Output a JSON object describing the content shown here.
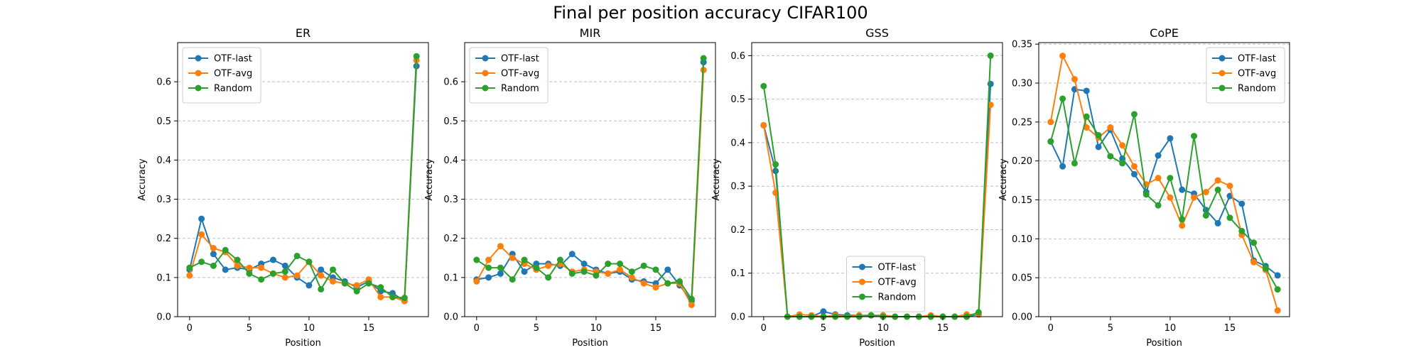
{
  "figure_title": "Final per position accuracy CIFAR100",
  "colors": {
    "OTF-last": "#1f77b4",
    "OTF-avg": "#ff7f0e",
    "Random": "#2ca02c",
    "grid": "#b0b0b0"
  },
  "chart_data": [
    {
      "type": "line",
      "title": "ER",
      "xlabel": "Position",
      "ylabel": "Accuracy",
      "x": [
        0,
        1,
        2,
        3,
        4,
        5,
        6,
        7,
        8,
        9,
        10,
        11,
        12,
        13,
        14,
        15,
        16,
        17,
        18,
        19
      ],
      "xlim": [
        -1.0,
        20.0
      ],
      "ylim": [
        0.0,
        0.7
      ],
      "xticks": [
        0,
        5,
        10,
        15
      ],
      "yticks": [
        0.0,
        0.1,
        0.2,
        0.3,
        0.4,
        0.5,
        0.6
      ],
      "grid": "y-dashed",
      "legend_position": "upper left",
      "series": [
        {
          "name": "OTF-last",
          "values": [
            0.12,
            0.25,
            0.16,
            0.12,
            0.125,
            0.12,
            0.135,
            0.145,
            0.13,
            0.1,
            0.08,
            0.12,
            0.1,
            0.09,
            0.075,
            0.09,
            0.065,
            0.06,
            0.04,
            0.64
          ]
        },
        {
          "name": "OTF-avg",
          "values": [
            0.105,
            0.21,
            0.175,
            0.165,
            0.13,
            0.125,
            0.125,
            0.11,
            0.1,
            0.105,
            0.14,
            0.105,
            0.09,
            0.085,
            0.08,
            0.095,
            0.05,
            0.05,
            0.04,
            0.655
          ]
        },
        {
          "name": "Random",
          "values": [
            0.125,
            0.14,
            0.13,
            0.17,
            0.145,
            0.11,
            0.095,
            0.11,
            0.115,
            0.155,
            0.14,
            0.07,
            0.12,
            0.085,
            0.065,
            0.085,
            0.075,
            0.05,
            0.048,
            0.665
          ]
        }
      ]
    },
    {
      "type": "line",
      "title": "MIR",
      "xlabel": "Position",
      "ylabel": "Accuracy",
      "x": [
        0,
        1,
        2,
        3,
        4,
        5,
        6,
        7,
        8,
        9,
        10,
        11,
        12,
        13,
        14,
        15,
        16,
        17,
        18,
        19
      ],
      "xlim": [
        -1.0,
        20.0
      ],
      "ylim": [
        0.0,
        0.7
      ],
      "xticks": [
        0,
        5,
        10,
        15
      ],
      "yticks": [
        0.0,
        0.1,
        0.2,
        0.3,
        0.4,
        0.5,
        0.6
      ],
      "grid": "y-dashed",
      "legend_position": "upper left",
      "series": [
        {
          "name": "OTF-last",
          "values": [
            0.095,
            0.1,
            0.11,
            0.16,
            0.115,
            0.135,
            0.135,
            0.13,
            0.16,
            0.135,
            0.12,
            0.11,
            0.115,
            0.095,
            0.09,
            0.085,
            0.12,
            0.08,
            0.04,
            0.65
          ]
        },
        {
          "name": "OTF-avg",
          "values": [
            0.09,
            0.145,
            0.18,
            0.15,
            0.135,
            0.12,
            0.13,
            0.135,
            0.115,
            0.12,
            0.115,
            0.11,
            0.12,
            0.1,
            0.085,
            0.075,
            0.085,
            0.085,
            0.03,
            0.63
          ]
        },
        {
          "name": "Random",
          "values": [
            0.145,
            0.125,
            0.125,
            0.095,
            0.145,
            0.125,
            0.1,
            0.145,
            0.11,
            0.115,
            0.105,
            0.135,
            0.135,
            0.115,
            0.13,
            0.12,
            0.085,
            0.09,
            0.045,
            0.66
          ]
        }
      ]
    },
    {
      "type": "line",
      "title": "GSS",
      "xlabel": "Position",
      "ylabel": "Accuracy",
      "x": [
        0,
        1,
        2,
        3,
        4,
        5,
        6,
        7,
        8,
        9,
        10,
        11,
        12,
        13,
        14,
        15,
        16,
        17,
        18,
        19
      ],
      "xlim": [
        -1.0,
        20.0
      ],
      "ylim": [
        0.0,
        0.63
      ],
      "xticks": [
        0,
        5,
        10,
        15
      ],
      "yticks": [
        0.0,
        0.1,
        0.2,
        0.3,
        0.4,
        0.5,
        0.6
      ],
      "grid": "y-dashed",
      "legend_position": "lower center",
      "series": [
        {
          "name": "OTF-last",
          "values": [
            0.44,
            0.335,
            0.0,
            0.0,
            0.0,
            0.012,
            0.005,
            0.003,
            0.003,
            0.003,
            0.003,
            0.0,
            0.0,
            0.0,
            0.0,
            0.0,
            0.0,
            0.0,
            0.005,
            0.535
          ]
        },
        {
          "name": "OTF-avg",
          "values": [
            0.44,
            0.285,
            0.0,
            0.005,
            0.003,
            0.0,
            0.003,
            0.0,
            0.003,
            0.003,
            0.003,
            0.0,
            0.0,
            0.0,
            0.003,
            0.0,
            0.0,
            0.005,
            0.005,
            0.487
          ]
        },
        {
          "name": "Random",
          "values": [
            0.53,
            0.35,
            0.0,
            0.0,
            0.0,
            0.0,
            0.0,
            0.0,
            0.0,
            0.003,
            0.0,
            0.0,
            0.0,
            0.0,
            0.0,
            0.0,
            0.0,
            0.0,
            0.01,
            0.6
          ]
        }
      ]
    },
    {
      "type": "line",
      "title": "CoPE",
      "xlabel": "Position",
      "ylabel": "Accuracy",
      "x": [
        0,
        1,
        2,
        3,
        4,
        5,
        6,
        7,
        8,
        9,
        10,
        11,
        12,
        13,
        14,
        15,
        16,
        17,
        18,
        19
      ],
      "xlim": [
        -1.0,
        20.0
      ],
      "ylim": [
        0.0,
        0.352
      ],
      "xticks": [
        0,
        5,
        10,
        15
      ],
      "yticks": [
        0.0,
        0.05,
        0.1,
        0.15,
        0.2,
        0.25,
        0.3,
        0.35
      ],
      "ytick_labels": [
        "0.00",
        "0.05",
        "0.10",
        "0.15",
        "0.20",
        "0.25",
        "0.30",
        "0.35"
      ],
      "grid": "y-dashed",
      "legend_position": "upper right",
      "series": [
        {
          "name": "OTF-last",
          "values": [
            0.225,
            0.193,
            0.292,
            0.29,
            0.218,
            0.24,
            0.203,
            0.183,
            0.16,
            0.207,
            0.229,
            0.163,
            0.158,
            0.137,
            0.12,
            0.155,
            0.145,
            0.072,
            0.065,
            0.053
          ]
        },
        {
          "name": "OTF-avg",
          "values": [
            0.25,
            0.335,
            0.305,
            0.243,
            0.23,
            0.243,
            0.22,
            0.193,
            0.17,
            0.178,
            0.153,
            0.117,
            0.153,
            0.16,
            0.175,
            0.168,
            0.105,
            0.07,
            0.06,
            0.008
          ]
        },
        {
          "name": "Random",
          "values": [
            0.225,
            0.28,
            0.197,
            0.257,
            0.233,
            0.206,
            0.197,
            0.26,
            0.157,
            0.143,
            0.178,
            0.125,
            0.232,
            0.13,
            0.163,
            0.127,
            0.11,
            0.095,
            0.062,
            0.035
          ]
        }
      ]
    }
  ]
}
